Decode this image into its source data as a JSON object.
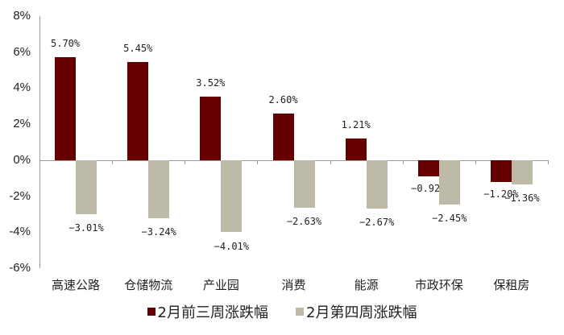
{
  "chart_data": {
    "type": "bar",
    "title": "",
    "xlabel": "",
    "ylabel": "",
    "ylim": [
      -6,
      8
    ],
    "yticks": [
      "8%",
      "6%",
      "4%",
      "2%",
      "0%",
      "-2%",
      "-4%",
      "-6%"
    ],
    "grid": false,
    "legend_position": "bottom",
    "categories": [
      "高速公路",
      "仓储物流",
      "产业园",
      "消费",
      "能源",
      "市政环保",
      "保租房"
    ],
    "series": [
      {
        "name": "2月前三周涨跌幅",
        "color": "#660000",
        "values": [
          5.7,
          5.45,
          3.52,
          2.6,
          1.21,
          -0.92,
          -1.2
        ],
        "labels": [
          "5.70%",
          "5.45%",
          "3.52%",
          "2.60%",
          "1.21%",
          "-0.92%",
          "-1.20%"
        ]
      },
      {
        "name": "2月第四周涨跌幅",
        "color": "#BDBAA7",
        "values": [
          -3.01,
          -3.24,
          -4.01,
          -2.63,
          -2.67,
          -2.45,
          -1.36
        ],
        "labels": [
          "-3.01%",
          "-3.24%",
          "-4.01%",
          "-2.63%",
          "-2.67%",
          "-2.45%",
          "-1.36%"
        ]
      }
    ]
  },
  "legend": {
    "items": [
      {
        "label": "2月前三周涨跌幅",
        "color": "#660000"
      },
      {
        "label": "2月第四周涨跌幅",
        "color": "#BDBAA7"
      }
    ]
  }
}
